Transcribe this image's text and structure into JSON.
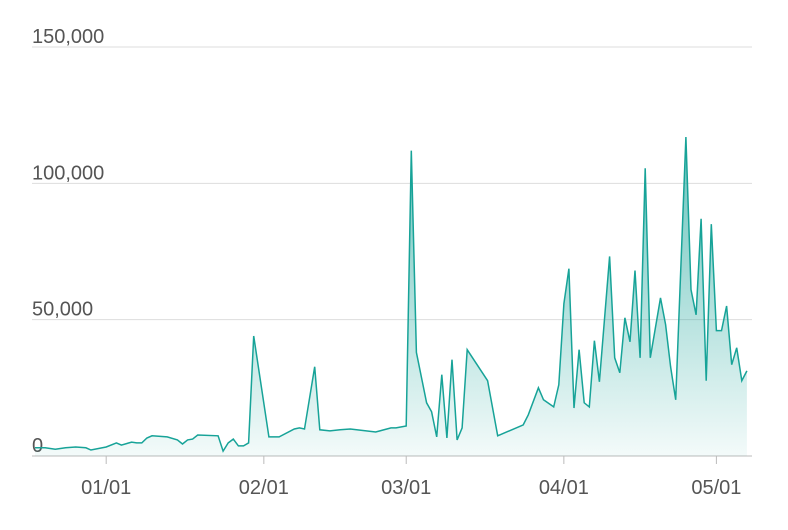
{
  "chart_data": {
    "type": "area",
    "x": [
      "12/18",
      "12/20",
      "12/22",
      "12/24",
      "12/26",
      "12/28",
      "12/29",
      "01/01",
      "01/03",
      "01/04",
      "01/06",
      "01/07",
      "01/08",
      "01/09",
      "01/10",
      "01/13",
      "01/15",
      "01/16",
      "01/17",
      "01/18",
      "01/19",
      "01/23",
      "01/24",
      "01/25",
      "01/26",
      "01/27",
      "01/28",
      "01/29",
      "01/30",
      "02/02",
      "02/04",
      "02/07",
      "02/08",
      "02/09",
      "02/11",
      "02/12",
      "02/14",
      "02/16",
      "02/18",
      "02/23",
      "02/26",
      "02/27",
      "03/01",
      "03/02",
      "03/03",
      "03/05",
      "03/06",
      "03/07",
      "03/08",
      "03/09",
      "03/10",
      "03/11",
      "03/12",
      "03/13",
      "03/17",
      "03/19",
      "03/24",
      "03/25",
      "03/27",
      "03/28",
      "03/30",
      "03/31",
      "04/01",
      "04/02",
      "04/03",
      "04/04",
      "04/05",
      "04/06",
      "04/07",
      "04/08",
      "04/10",
      "04/11",
      "04/12",
      "04/13",
      "04/14",
      "04/15",
      "04/16",
      "04/17",
      "04/18",
      "04/20",
      "04/21",
      "04/22",
      "04/23",
      "04/25",
      "04/26",
      "04/27",
      "04/28",
      "04/29",
      "04/30",
      "05/01",
      "05/02",
      "05/03",
      "05/04",
      "05/05",
      "05/06",
      "05/07"
    ],
    "values": [
      3000,
      3000,
      2500,
      3000,
      3300,
      3000,
      2200,
      3300,
      4800,
      4000,
      5100,
      4800,
      4800,
      6600,
      7400,
      7000,
      5900,
      4400,
      5900,
      6200,
      7700,
      7400,
      1800,
      4800,
      6200,
      3700,
      3700,
      4800,
      44000,
      7000,
      7000,
      9900,
      10300,
      9900,
      32700,
      9600,
      9200,
      9600,
      9900,
      8800,
      10300,
      10300,
      11000,
      112000,
      38000,
      19500,
      16200,
      7000,
      29800,
      6600,
      35300,
      5900,
      10300,
      39000,
      27600,
      7400,
      11400,
      15100,
      25000,
      20600,
      18000,
      26100,
      55900,
      68700,
      17600,
      39000,
      19500,
      18000,
      42300,
      27200,
      73200,
      36000,
      30500,
      50700,
      41900,
      68000,
      36000,
      105500,
      36000,
      58000,
      48200,
      32700,
      20600,
      117000,
      61000,
      51800,
      87000,
      27600,
      85000,
      46000,
      46000,
      55000,
      33500,
      39700,
      27600,
      31200
    ],
    "color": "#17a398",
    "xlim": [
      "12/18",
      "05/08"
    ],
    "xticks": [
      "01/01",
      "02/01",
      "03/01",
      "04/01",
      "05/01"
    ],
    "ylim": [
      0,
      150000
    ],
    "yticks": [
      0,
      {
        "value": 50000,
        "label": "50,000"
      },
      {
        "value": 100000,
        "label": "100,000"
      },
      {
        "value": 150000,
        "label": "150,000"
      }
    ],
    "grid": true
  }
}
